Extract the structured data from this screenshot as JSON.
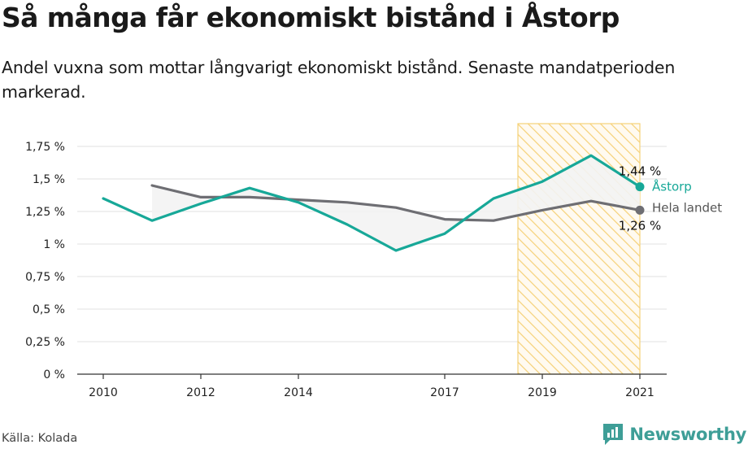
{
  "title": "Så många får ekonomiskt bistånd i Åstorp",
  "subtitle": "Andel vuxna som mottar långvarigt ekonomiskt bistånd. Senaste mandatperioden markerad.",
  "source": "Källa: Kolada",
  "brand": {
    "name": "Newsworthy",
    "logo_icon": "newsworthy-logo-icon"
  },
  "chart_data": {
    "type": "line",
    "x_ticks": [
      2010,
      2012,
      2014,
      2017,
      2019,
      2021
    ],
    "y_ticks": [
      "0 %",
      "0,25 %",
      "0,5 %",
      "0,75 %",
      "1 %",
      "1,25 %",
      "1,5 %",
      "1,75 %"
    ],
    "y_tick_values": [
      0,
      0.25,
      0.5,
      0.75,
      1.0,
      1.25,
      1.5,
      1.75
    ],
    "ylim": [
      0,
      1.75
    ],
    "xlim": [
      2010,
      2021
    ],
    "grid": true,
    "highlight_period": [
      2018.5,
      2021
    ],
    "series": [
      {
        "name": "Åstorp",
        "color": "#17a898",
        "x": [
          2010,
          2011,
          2012,
          2013,
          2014,
          2015,
          2016,
          2017,
          2018,
          2019,
          2020,
          2021
        ],
        "y": [
          1.35,
          1.18,
          1.31,
          1.43,
          1.32,
          1.15,
          0.95,
          1.08,
          1.35,
          1.48,
          1.68,
          1.44
        ],
        "end_label": "1,44 %"
      },
      {
        "name": "Hela landet",
        "color": "#6e6e73",
        "x": [
          2011,
          2012,
          2013,
          2014,
          2015,
          2016,
          2017,
          2018,
          2019,
          2020,
          2021
        ],
        "y": [
          1.45,
          1.36,
          1.36,
          1.34,
          1.32,
          1.28,
          1.19,
          1.18,
          1.26,
          1.33,
          1.26
        ],
        "end_label": "1,26 %"
      }
    ]
  }
}
